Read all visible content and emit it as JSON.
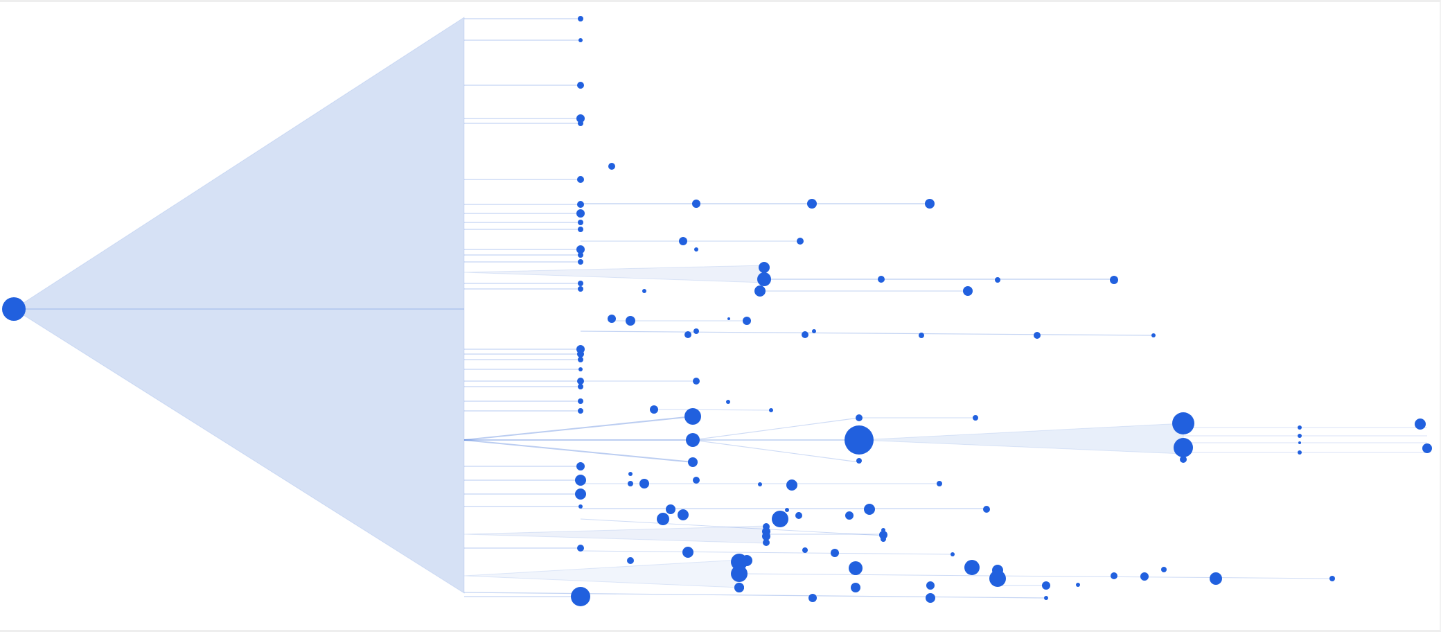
{
  "diagram": {
    "type": "tree",
    "layout": "horizontal",
    "colors": {
      "node": "#2160de",
      "link": "#3b6fd8",
      "fan": "#d6e1f5",
      "background": "#ffffff"
    }
  }
}
